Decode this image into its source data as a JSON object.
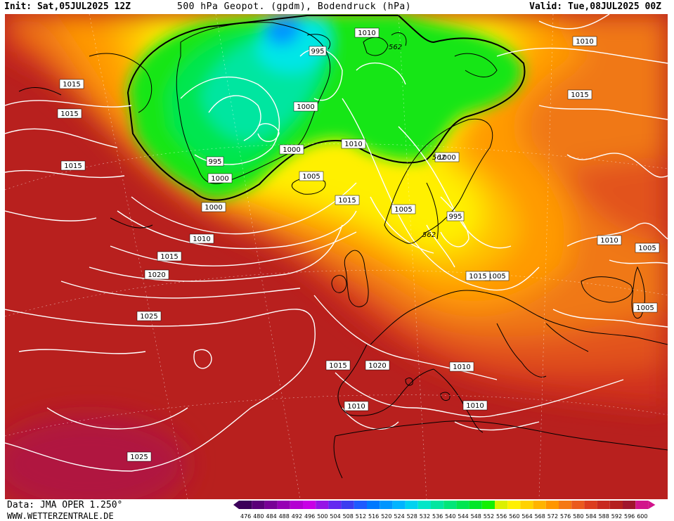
{
  "header": {
    "init": "Init: Sat,05JUL2025 12Z",
    "title": "500 hPa Geopot. (gpdm), Bodendruck (hPa)",
    "valid": "Valid: Tue,08JUL2025 00Z"
  },
  "footer": {
    "data_source": "Data: JMA OPER 1.250°",
    "website": "WWW.WETTERZENTRALE.DE"
  },
  "legend": {
    "values": [
      "476",
      "480",
      "484",
      "488",
      "492",
      "496",
      "500",
      "504",
      "508",
      "512",
      "516",
      "520",
      "524",
      "528",
      "532",
      "536",
      "540",
      "544",
      "548",
      "552",
      "556",
      "560",
      "564",
      "568",
      "572",
      "576",
      "580",
      "584",
      "588",
      "592",
      "596",
      "600"
    ],
    "colors": [
      "#3c005a",
      "#5a0078",
      "#780096",
      "#9600b4",
      "#b400d2",
      "#c800e6",
      "#9614e6",
      "#6428f0",
      "#3c3cf0",
      "#1e5aff",
      "#0078ff",
      "#0096ff",
      "#00b4ff",
      "#00d2f0",
      "#00e6c8",
      "#00e6a0",
      "#00e678",
      "#00e650",
      "#00e628",
      "#14f000",
      "#dcf000",
      "#fff000",
      "#ffd200",
      "#ffb400",
      "#ff9600",
      "#f57814",
      "#eb5a1e",
      "#dc3c1e",
      "#c8281e",
      "#b41e1e",
      "#a0142d",
      "#d2148c"
    ]
  },
  "map": {
    "contour_562_label": "562",
    "pressure_labels": [
      {
        "id": "p1015-a",
        "text": "1015"
      },
      {
        "id": "p1015-b",
        "text": "1015"
      },
      {
        "id": "p1015-c",
        "text": "1015"
      },
      {
        "id": "p995-a",
        "text": "995"
      },
      {
        "id": "p1000-a",
        "text": "1000"
      },
      {
        "id": "p1000-b",
        "text": "1000"
      },
      {
        "id": "p1000-c",
        "text": "1000"
      },
      {
        "id": "p1000-d",
        "text": "1000"
      },
      {
        "id": "p995-b",
        "text": "995"
      },
      {
        "id": "p1005-a",
        "text": "1005"
      },
      {
        "id": "p1010-a",
        "text": "1010"
      },
      {
        "id": "p1010-b",
        "text": "1010"
      },
      {
        "id": "p1015-d",
        "text": "1015"
      },
      {
        "id": "p1015-e",
        "text": "1015"
      },
      {
        "id": "p1020-a",
        "text": "1020"
      },
      {
        "id": "p1025-a",
        "text": "1025"
      },
      {
        "id": "p1010-c",
        "text": "1010"
      },
      {
        "id": "p1015-f",
        "text": "1015"
      },
      {
        "id": "p1005-b",
        "text": "1005"
      },
      {
        "id": "p995-c",
        "text": "995"
      },
      {
        "id": "p1000-e",
        "text": "1000"
      },
      {
        "id": "p1005-c",
        "text": "1005"
      },
      {
        "id": "p1010-d",
        "text": "1010"
      },
      {
        "id": "p1005-d",
        "text": "1005"
      },
      {
        "id": "p1005-e",
        "text": "1005"
      },
      {
        "id": "p1015-g",
        "text": "1015"
      },
      {
        "id": "p1020-b",
        "text": "1020"
      },
      {
        "id": "p1010-e",
        "text": "1010"
      },
      {
        "id": "p1010-f",
        "text": "1010"
      },
      {
        "id": "p1010-g",
        "text": "1010"
      },
      {
        "id": "p1025-b",
        "text": "1025"
      },
      {
        "id": "p1010-h",
        "text": "1010"
      },
      {
        "id": "p1015-h",
        "text": "1015"
      }
    ],
    "geopot_labels": [
      {
        "id": "g562-a",
        "text": "562"
      },
      {
        "id": "g562-b",
        "text": "562"
      },
      {
        "id": "g562-c",
        "text": "562"
      }
    ]
  }
}
